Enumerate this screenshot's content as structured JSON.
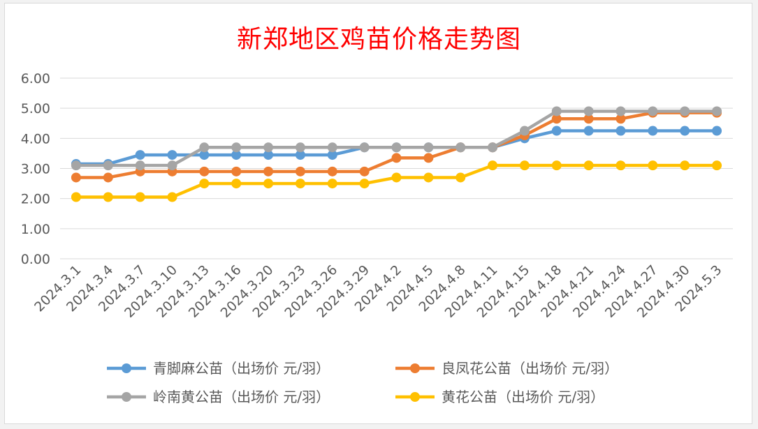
{
  "chart_data": {
    "type": "line",
    "title": "新郑地区鸡苗价格走势图",
    "xlabel": "",
    "ylabel": "",
    "ylim": [
      0,
      6
    ],
    "yticks": [
      "0.00",
      "1.00",
      "2.00",
      "3.00",
      "4.00",
      "5.00",
      "6.00"
    ],
    "categories": [
      "2024.3.1",
      "2024.3.4",
      "2024.3.7",
      "2024.3.10",
      "2024.3.13",
      "2024.3.16",
      "2024.3.20",
      "2024.3.23",
      "2024.3.26",
      "2024.3.29",
      "2024.4.2",
      "2024.4.5",
      "2024.4.8",
      "2024.4.11",
      "2024.4.15",
      "2024.4.18",
      "2024.4.21",
      "2024.4.24",
      "2024.4.27",
      "2024.4.30",
      "2024.5.3"
    ],
    "grid": true,
    "legend_position": "bottom",
    "series": [
      {
        "name": "青脚麻公苗（出场价 元/羽）",
        "color": "#5b9bd5",
        "values": [
          3.15,
          3.15,
          3.45,
          3.45,
          3.45,
          3.45,
          3.45,
          3.45,
          3.45,
          3.7,
          3.7,
          3.7,
          3.7,
          3.7,
          4.0,
          4.25,
          4.25,
          4.25,
          4.25,
          4.25,
          4.25
        ]
      },
      {
        "name": "良凤花公苗（出场价 元/羽）",
        "color": "#ed7d31",
        "values": [
          2.7,
          2.7,
          2.9,
          2.9,
          2.9,
          2.9,
          2.9,
          2.9,
          2.9,
          2.9,
          3.35,
          3.35,
          3.7,
          3.7,
          4.1,
          4.65,
          4.65,
          4.65,
          4.85,
          4.85,
          4.85
        ]
      },
      {
        "name": "岭南黄公苗（出场价 元/羽）",
        "color": "#a5a5a5",
        "values": [
          3.1,
          3.1,
          3.1,
          3.1,
          3.7,
          3.7,
          3.7,
          3.7,
          3.7,
          3.7,
          3.7,
          3.7,
          3.7,
          3.7,
          4.25,
          4.9,
          4.9,
          4.9,
          4.9,
          4.9,
          4.9
        ]
      },
      {
        "name": "黄花公苗（出场价 元/羽）",
        "color": "#ffc000",
        "values": [
          2.05,
          2.05,
          2.05,
          2.05,
          2.5,
          2.5,
          2.5,
          2.5,
          2.5,
          2.5,
          2.7,
          2.7,
          2.7,
          3.1,
          3.1,
          3.1,
          3.1,
          3.1,
          3.1,
          3.1,
          3.1
        ]
      }
    ]
  }
}
